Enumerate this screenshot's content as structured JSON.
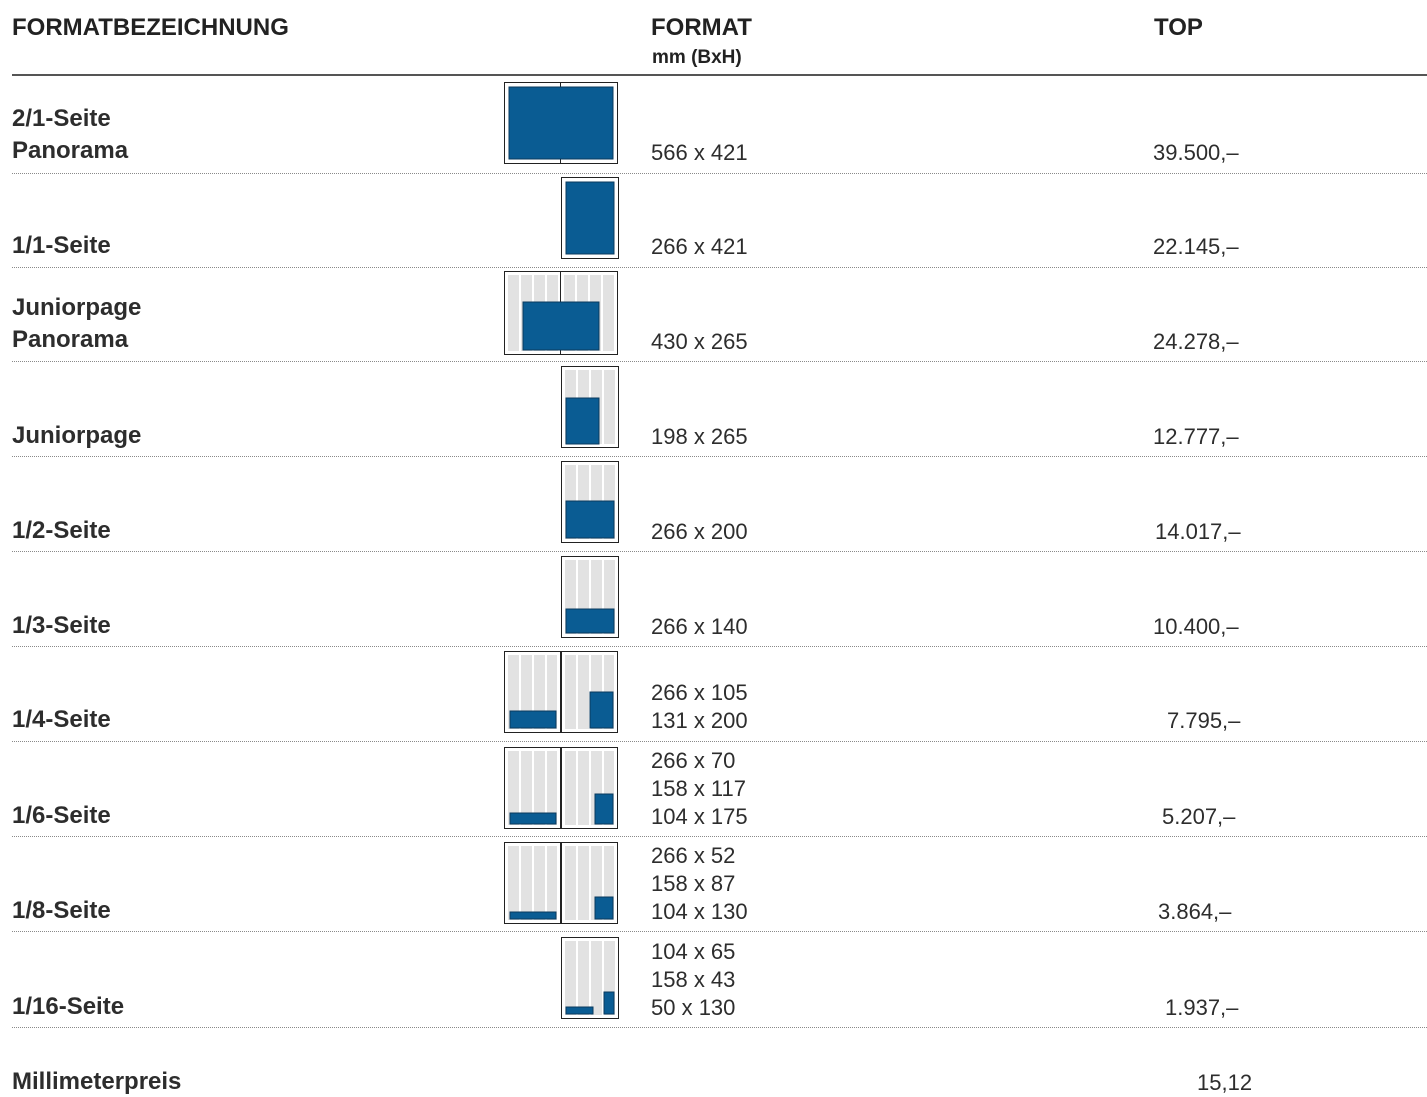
{
  "header": {
    "col_name": "FORMATBEZEICHNUNG",
    "col_format": "FORMAT",
    "col_format_unit": "mm (BxH)",
    "col_price": "TOP"
  },
  "rows": [
    {
      "name": [
        "2/1-Seite",
        "Panorama"
      ],
      "formats": [
        "566 x 421"
      ],
      "price": "39.500,–"
    },
    {
      "name": [
        "1/1-Seite"
      ],
      "formats": [
        "266 x 421"
      ],
      "price": "22.145,–"
    },
    {
      "name": [
        "Juniorpage",
        "Panorama"
      ],
      "formats": [
        "430 x 265"
      ],
      "price": "24.278,–"
    },
    {
      "name": [
        "Juniorpage"
      ],
      "formats": [
        "198 x 265"
      ],
      "price": "12.777,–"
    },
    {
      "name": [
        "1/2-Seite"
      ],
      "formats": [
        "266 x 200"
      ],
      "price": "14.017,–"
    },
    {
      "name": [
        "1/3-Seite"
      ],
      "formats": [
        "266 x 140"
      ],
      "price": "10.400,–"
    },
    {
      "name": [
        "1/4-Seite"
      ],
      "formats": [
        "266 x 105",
        "131 x 200"
      ],
      "price": "7.795,–"
    },
    {
      "name": [
        "1/6-Seite"
      ],
      "formats": [
        "266 x 70",
        "158 x 117",
        "104 x 175"
      ],
      "price": "5.207,–"
    },
    {
      "name": [
        "1/8-Seite"
      ],
      "formats": [
        "266 x 52",
        "158 x 87",
        "104 x 130"
      ],
      "price": "3.864,–"
    },
    {
      "name": [
        "1/16-Seite"
      ],
      "formats": [
        "104 x 65",
        "158 x 43",
        "50 x 130"
      ],
      "price": "1.937,–"
    }
  ],
  "footer": {
    "label": "Millimeterpreis",
    "value": "15,12"
  },
  "colors": {
    "ad_fill": "#0a5c93",
    "column_grey": "#e2e2e2",
    "rule": "#555555"
  }
}
